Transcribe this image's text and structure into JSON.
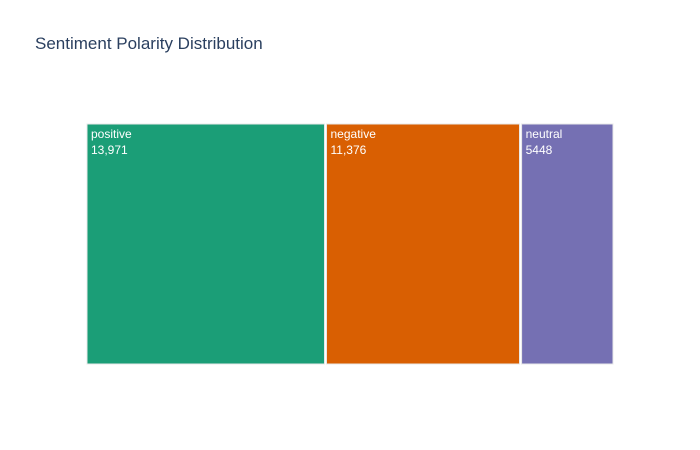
{
  "chart_data": {
    "type": "treemap",
    "title": "Sentiment Polarity Distribution",
    "categories": [
      "positive",
      "negative",
      "neutral"
    ],
    "values": [
      13971,
      11376,
      5448
    ],
    "value_labels": [
      "13,971",
      "11,376",
      "5448"
    ],
    "colors": [
      "#1b9e77",
      "#d95f02",
      "#7570b3"
    ]
  }
}
